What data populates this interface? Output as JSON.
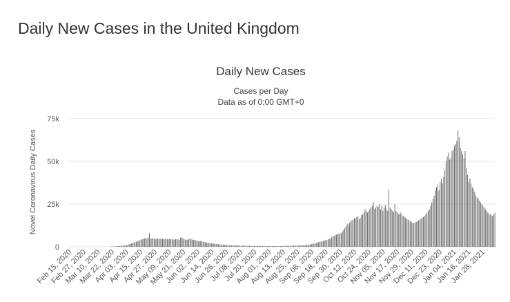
{
  "page": {
    "title": "Daily New Cases in the United Kingdom"
  },
  "chart_data": {
    "type": "bar",
    "title": "Daily New Cases",
    "subtitle": "Cases per Day",
    "subtitle2": "Data as of 0:00 GMT+0",
    "ylabel": "Novel Coronavirus Daily Cases",
    "xlabel": "",
    "ylim": [
      0,
      75000
    ],
    "grid": true,
    "legend": "none",
    "bar_color": "#666666",
    "y_ticks": [
      {
        "value": 0,
        "label": "0"
      },
      {
        "value": 25000,
        "label": "25k"
      },
      {
        "value": 50000,
        "label": "50k"
      },
      {
        "value": 75000,
        "label": "75k"
      }
    ],
    "x_tick_labels": [
      "Feb 15, 2020",
      "Feb 27, 2020",
      "Mar 10, 2020",
      "Mar 22, 2020",
      "Apr 03, 2020",
      "Apr 15, 2020",
      "Apr 27, 2020",
      "May 09, 2020",
      "May 21, 2020",
      "Jun 02, 2020",
      "Jun 14, 2020",
      "Jun 26, 2020",
      "Jul 08, 2020",
      "Jul 20, 2020",
      "Aug 01, 2020",
      "Aug 13, 2020",
      "Aug 25, 2020",
      "Sep 06, 2020",
      "Sep 18, 2020",
      "Sep 30, 2020",
      "Oct 12, 2020",
      "Oct 24, 2020",
      "Nov 05, 2020",
      "Nov 17, 2020",
      "Nov 29, 2020",
      "Dec 11, 2020",
      "Dec 23, 2020",
      "Jan 04, 2021",
      "Jan 16, 2021",
      "Jan 28, 2021"
    ],
    "x_start": "2020-02-15",
    "x_end": "2021-02-05",
    "values": [
      0,
      0,
      0,
      0,
      0,
      0,
      0,
      0,
      0,
      0,
      0,
      0,
      0,
      0,
      0,
      0,
      0,
      0,
      0,
      0,
      0,
      0,
      0,
      0,
      0,
      0,
      0,
      0,
      0,
      0,
      0,
      0,
      0,
      0,
      0,
      100,
      150,
      180,
      220,
      280,
      320,
      400,
      480,
      560,
      650,
      720,
      800,
      900,
      1000,
      1200,
      1500,
      1700,
      2000,
      2300,
      2500,
      2800,
      3000,
      3300,
      3600,
      4000,
      4300,
      4500,
      4700,
      5000,
      5200,
      4700,
      5500,
      8000,
      4800,
      4900,
      5200,
      4600,
      4600,
      4800,
      5000,
      4600,
      4800,
      4900,
      4700,
      4500,
      4600,
      4700,
      4500,
      4400,
      4400,
      4600,
      4500,
      4300,
      4200,
      4400,
      4500,
      4300,
      4000,
      5400,
      5500,
      5000,
      4500,
      4300,
      4200,
      4000,
      4700,
      4800,
      4500,
      4200,
      4000,
      3900,
      3800,
      3600,
      3400,
      3300,
      3400,
      3200,
      3000,
      2800,
      2700,
      2500,
      2400,
      2300,
      2200,
      2100,
      2000,
      1900,
      1800,
      1700,
      1600,
      1500,
      1400,
      1400,
      1300,
      1300,
      1200,
      1200,
      1100,
      1000,
      1000,
      900,
      900,
      900,
      850,
      800,
      780,
      760,
      740,
      720,
      700,
      680,
      650,
      620,
      600,
      600,
      580,
      560,
      540,
      530,
      520,
      510,
      500,
      500,
      490,
      480,
      470,
      470,
      460,
      460,
      450,
      440,
      440,
      430,
      420,
      420,
      410,
      400,
      400,
      400,
      410,
      420,
      430,
      440,
      460,
      480,
      500,
      520,
      540,
      560,
      580,
      600,
      620,
      650,
      680,
      700,
      720,
      750,
      780,
      800,
      850,
      900,
      950,
      1000,
      1050,
      1100,
      1200,
      1300,
      1400,
      1500,
      1700,
      1900,
      2100,
      2300,
      2500,
      2700,
      2900,
      3100,
      3300,
      3500,
      3700,
      3900,
      4100,
      4400,
      4700,
      5000,
      5500,
      6000,
      6500,
      7000,
      7200,
      7400,
      7600,
      7800,
      8000,
      9000,
      10000,
      11000,
      12000,
      13500,
      13000,
      14000,
      15000,
      15500,
      16000,
      17000,
      16500,
      17500,
      18000,
      16000,
      17000,
      18500,
      19000,
      20000,
      22000,
      21000,
      20000,
      21000,
      22000,
      23000,
      24000,
      26000,
      22000,
      23000,
      24000,
      23500,
      25000,
      22000,
      24000,
      21000,
      23000,
      24500,
      22000,
      21000,
      33000,
      23000,
      22000,
      21000,
      20000,
      25000,
      21000,
      20000,
      19000,
      19500,
      20000,
      18500,
      18000,
      17500,
      17000,
      16500,
      16000,
      15500,
      15000,
      14500,
      14000,
      14000,
      14200,
      14600,
      15000,
      15500,
      16000,
      16500,
      17000,
      17500,
      18000,
      19000,
      20000,
      21000,
      22000,
      24000,
      26000,
      28000,
      30000,
      33000,
      35000,
      36500,
      33000,
      38000,
      40000,
      37000,
      41000,
      45000,
      50000,
      53000,
      55000,
      51000,
      52000,
      56000,
      57000,
      59000,
      60000,
      62000,
      68000,
      64000,
      58000,
      56000,
      54000,
      52000,
      56000,
      46000,
      42000,
      38000,
      40000,
      37000,
      35000,
      34000,
      32000,
      30000,
      29000,
      28000,
      27000,
      26000,
      25000,
      24000,
      23000,
      22000,
      21000,
      20000,
      19500,
      19000,
      18500,
      18000,
      19000,
      20000
    ]
  }
}
